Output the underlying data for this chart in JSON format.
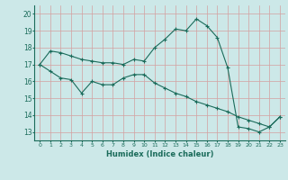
{
  "line1_x": [
    0,
    1,
    2,
    3,
    4,
    5,
    6,
    7,
    8,
    9,
    10,
    11,
    12,
    13,
    14,
    15,
    16,
    17,
    18,
    19,
    20,
    21,
    22,
    23
  ],
  "line1_y": [
    17.0,
    17.8,
    17.7,
    17.5,
    17.3,
    17.2,
    17.1,
    17.1,
    17.0,
    17.3,
    17.2,
    18.0,
    18.5,
    19.1,
    19.0,
    19.7,
    19.3,
    18.6,
    16.8,
    13.3,
    13.2,
    13.0,
    13.3,
    13.9
  ],
  "line2_x": [
    0,
    1,
    2,
    3,
    4,
    5,
    6,
    7,
    8,
    9,
    10,
    11,
    12,
    13,
    14,
    15,
    16,
    17,
    18,
    19,
    20,
    21,
    22,
    23
  ],
  "line2_y": [
    17.0,
    16.6,
    16.2,
    16.1,
    15.3,
    16.0,
    15.8,
    15.8,
    16.2,
    16.4,
    16.4,
    15.9,
    15.6,
    15.3,
    15.1,
    14.8,
    14.6,
    14.4,
    14.2,
    13.9,
    13.7,
    13.5,
    13.3,
    13.9
  ],
  "line_color": "#1a6b5a",
  "bg_color": "#cce8e8",
  "grid_color_h": "#d4a0a0",
  "grid_color_v": "#d4a0a0",
  "xlabel": "Humidex (Indice chaleur)",
  "ylim": [
    12.5,
    20.5
  ],
  "xlim": [
    -0.5,
    23.5
  ],
  "yticks": [
    13,
    14,
    15,
    16,
    17,
    18,
    19,
    20
  ],
  "xticks": [
    0,
    1,
    2,
    3,
    4,
    5,
    6,
    7,
    8,
    9,
    10,
    11,
    12,
    13,
    14,
    15,
    16,
    17,
    18,
    19,
    20,
    21,
    22,
    23
  ]
}
